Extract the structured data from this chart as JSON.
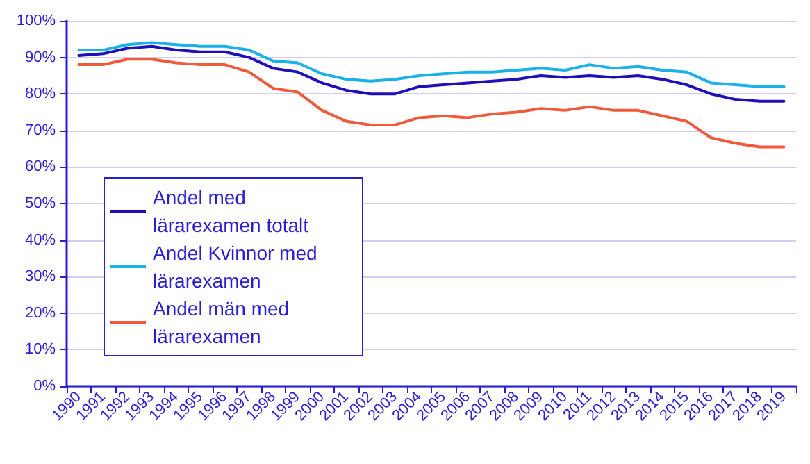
{
  "chart_data": {
    "type": "line",
    "categories": [
      "1990",
      "1991",
      "1992",
      "1993",
      "1994",
      "1995",
      "1996",
      "1997",
      "1998",
      "1999",
      "2000",
      "2001",
      "2002",
      "2003",
      "2004",
      "2005",
      "2006",
      "2007",
      "2008",
      "2009",
      "2010",
      "2011",
      "2012",
      "2013",
      "2014",
      "2015",
      "2016",
      "2017",
      "2018",
      "2019"
    ],
    "series": [
      {
        "name": "Andel med lärarexamen totalt",
        "color": "#1f0fb8",
        "values": [
          90.5,
          91,
          92.5,
          93,
          92,
          91.5,
          91.5,
          90,
          87,
          86,
          83,
          81,
          80,
          80,
          82,
          82.5,
          83,
          83.5,
          84,
          85,
          84.5,
          85,
          84.5,
          85,
          84,
          82.5,
          80,
          78.5,
          78,
          78
        ]
      },
      {
        "name": "Andel Kvinnor med lärarexamen",
        "color": "#1ab0e8",
        "values": [
          92,
          92,
          93.5,
          94,
          93.5,
          93,
          93,
          92,
          89,
          88.5,
          85.5,
          84,
          83.5,
          84,
          85,
          85.5,
          86,
          86,
          86.5,
          87,
          86.5,
          88,
          87,
          87.5,
          86.5,
          86,
          83,
          82.5,
          82,
          82
        ]
      },
      {
        "name": "Andel män med lärarexamen",
        "color": "#f05a3c",
        "values": [
          88,
          88,
          89.5,
          89.5,
          88.5,
          88,
          88,
          86,
          81.5,
          80.5,
          75.5,
          72.5,
          71.5,
          71.5,
          73.5,
          74,
          73.5,
          74.5,
          75,
          76,
          75.5,
          76.5,
          75.5,
          75.5,
          74,
          72.5,
          68,
          66.5,
          65.5,
          65.5
        ]
      }
    ],
    "ylim": [
      0,
      100
    ],
    "yticks": [
      {
        "value": 0,
        "label": "0%"
      },
      {
        "value": 10,
        "label": "10%"
      },
      {
        "value": 20,
        "label": "20%"
      },
      {
        "value": 30,
        "label": "30%"
      },
      {
        "value": 40,
        "label": "40%"
      },
      {
        "value": 50,
        "label": "50%"
      },
      {
        "value": 60,
        "label": "60%"
      },
      {
        "value": 70,
        "label": "70%"
      },
      {
        "value": 80,
        "label": "80%"
      },
      {
        "value": 90,
        "label": "90%"
      },
      {
        "value": 100,
        "label": "100%"
      }
    ],
    "grid": "y",
    "legend": "bottom left",
    "marker": "none",
    "line_style": "solid"
  }
}
